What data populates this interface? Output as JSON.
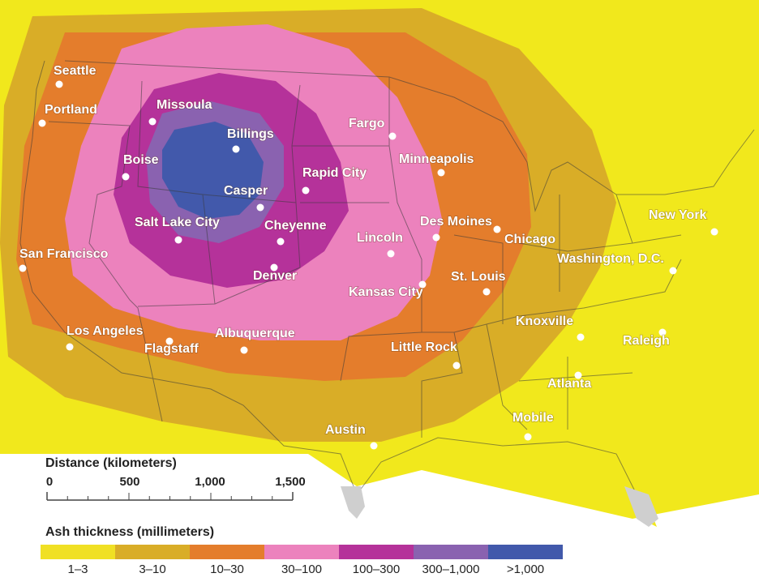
{
  "map": {
    "cities": [
      {
        "id": "seattle",
        "name": "Seattle"
      },
      {
        "id": "portland",
        "name": "Portland"
      },
      {
        "id": "missoula",
        "name": "Missoula"
      },
      {
        "id": "billings",
        "name": "Billings"
      },
      {
        "id": "boise",
        "name": "Boise"
      },
      {
        "id": "fargo",
        "name": "Fargo"
      },
      {
        "id": "minneapolis",
        "name": "Minneapolis"
      },
      {
        "id": "rapid-city",
        "name": "Rapid City"
      },
      {
        "id": "casper",
        "name": "Casper"
      },
      {
        "id": "salt-lake-city",
        "name": "Salt Lake City"
      },
      {
        "id": "cheyenne",
        "name": "Cheyenne"
      },
      {
        "id": "des-moines",
        "name": "Des Moines"
      },
      {
        "id": "lincoln",
        "name": "Lincoln"
      },
      {
        "id": "chicago",
        "name": "Chicago"
      },
      {
        "id": "new-york",
        "name": "New York"
      },
      {
        "id": "san-francisco",
        "name": "San Francisco"
      },
      {
        "id": "denver",
        "name": "Denver"
      },
      {
        "id": "washington-dc",
        "name": "Washington, D.C."
      },
      {
        "id": "st-louis",
        "name": "St. Louis"
      },
      {
        "id": "kansas-city",
        "name": "Kansas City"
      },
      {
        "id": "knoxville",
        "name": "Knoxville"
      },
      {
        "id": "los-angeles",
        "name": "Los Angeles"
      },
      {
        "id": "albuquerque",
        "name": "Albuquerque"
      },
      {
        "id": "flagstaff",
        "name": "Flagstaff"
      },
      {
        "id": "raleigh",
        "name": "Raleigh"
      },
      {
        "id": "little-rock",
        "name": "Little Rock"
      },
      {
        "id": "atlanta",
        "name": "Atlanta"
      },
      {
        "id": "mobile",
        "name": "Mobile"
      },
      {
        "id": "austin",
        "name": "Austin"
      }
    ]
  },
  "scale": {
    "title": "Distance (kilometers)",
    "ticks": [
      "0",
      "500",
      "1,000",
      "1,500"
    ]
  },
  "legend": {
    "title": "Ash thickness (millimeters)",
    "items": [
      {
        "label": "1–3",
        "color": "#f0e024"
      },
      {
        "label": "3–10",
        "color": "#d9ad27"
      },
      {
        "label": "10–30",
        "color": "#e47d2c"
      },
      {
        "label": "30–100",
        "color": "#ec82bd"
      },
      {
        "label": "100–300",
        "color": "#b5329a"
      },
      {
        "label": "300–1,000",
        "color": "#8a62b0"
      },
      {
        "label": ">1,000",
        "color": "#4259ab"
      }
    ]
  }
}
